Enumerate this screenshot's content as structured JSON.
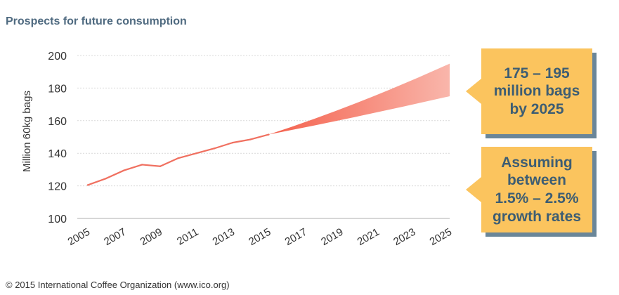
{
  "page_title": "Prospects for future consumption",
  "footer": "© 2015 International Coffee Organization (www.ico.org)",
  "callouts": [
    {
      "lines": [
        "175 – 195",
        "million bags",
        "by 2025"
      ]
    },
    {
      "lines": [
        "Assuming",
        "between",
        "1.5% – 2.5%",
        "growth rates"
      ]
    }
  ],
  "colors": {
    "title": "#4f6a80",
    "line": "#f07060",
    "band_start": "#f4604c",
    "band_end": "#f9b6ab",
    "callout_fill": "#fbc45e",
    "callout_text": "#3d5d73",
    "callout_shadow": "#6a8699"
  },
  "chart_data": {
    "type": "line",
    "ylabel": "Million 60kg bags",
    "xlabel": "",
    "ylim": [
      100,
      200
    ],
    "xlim": [
      2005,
      2025
    ],
    "yticks": [
      100,
      120,
      140,
      160,
      180,
      200
    ],
    "xtick_labels": [
      "2005",
      "2007",
      "2009",
      "2011",
      "2013",
      "2015",
      "2017",
      "2019",
      "2021",
      "2023",
      "2025"
    ],
    "grid": true,
    "historical": {
      "x": [
        2005,
        2006,
        2007,
        2008,
        2009,
        2010,
        2011,
        2012,
        2013,
        2014,
        2015
      ],
      "y": [
        120.5,
        124.5,
        129.5,
        133,
        132,
        137,
        140,
        143,
        146.5,
        148.5,
        151.5
      ]
    },
    "projection_band": {
      "x_start": 2015,
      "y_start": 151.5,
      "x_end": 2025,
      "low_end": 175,
      "high_end": 195
    }
  }
}
